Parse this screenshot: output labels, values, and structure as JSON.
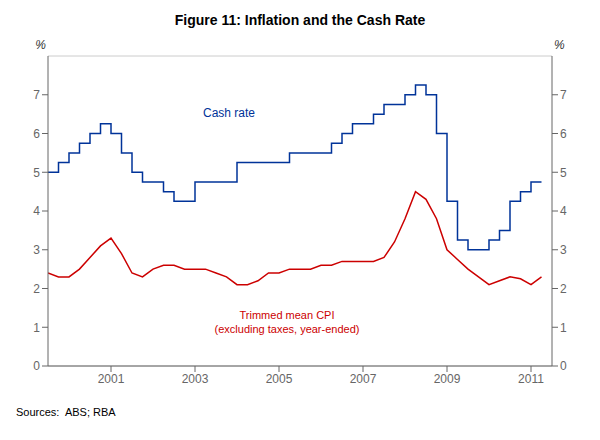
{
  "chart_data": {
    "type": "line",
    "title": "Figure 11: Inflation and the Cash Rate",
    "ylabel": "%",
    "y2label": "%",
    "xlim": [
      1999.5,
      2011.5
    ],
    "xticks": [
      2001,
      2003,
      2005,
      2007,
      2009,
      2011
    ],
    "ylim": [
      0,
      8
    ],
    "yticks": [
      0,
      1,
      2,
      3,
      4,
      5,
      6,
      7
    ],
    "y2lim": [
      0,
      8
    ],
    "y2ticks": [
      0,
      1,
      2,
      3,
      4,
      5,
      6,
      7
    ],
    "grid": true,
    "annotations": [
      "Cash rate",
      "Trimmed mean CPI",
      "(excluding taxes, year-ended)",
      "Sources:  ABS; RBA"
    ],
    "series": [
      {
        "type": "step",
        "color": "#003399",
        "x": [
          1999.5,
          1999.75,
          2000.0,
          2000.25,
          2000.5,
          2000.75,
          2000.916,
          2001.0,
          2001.25,
          2001.5,
          2001.75,
          2002.0,
          2002.25,
          2002.5,
          2002.75,
          2003.0,
          2003.25,
          2003.5,
          2003.75,
          2004.0,
          2004.25,
          2004.5,
          2004.75,
          2005.0,
          2005.25,
          2005.5,
          2005.75,
          2006.0,
          2006.25,
          2006.5,
          2006.75,
          2007.0,
          2007.25,
          2007.5,
          2007.75,
          2008.0,
          2008.25,
          2008.5,
          2008.75,
          2009.0,
          2009.25,
          2009.5,
          2009.75,
          2010.0,
          2010.25,
          2010.5,
          2010.75,
          2011.0,
          2011.25
        ],
        "values": [
          5.0,
          5.25,
          5.5,
          5.75,
          6.0,
          6.25,
          6.25,
          6.0,
          5.5,
          5.0,
          4.75,
          4.75,
          4.5,
          4.25,
          4.25,
          4.75,
          4.75,
          4.75,
          4.75,
          5.25,
          5.25,
          5.25,
          5.25,
          5.25,
          5.5,
          5.5,
          5.5,
          5.5,
          5.75,
          6.0,
          6.25,
          6.25,
          6.5,
          6.75,
          6.75,
          7.0,
          7.25,
          7.0,
          6.0,
          4.25,
          3.25,
          3.0,
          3.0,
          3.25,
          3.5,
          4.25,
          4.5,
          4.75,
          4.75
        ]
      },
      {
        "type": "line",
        "color": "#cc0000",
        "x": [
          1999.5,
          1999.75,
          2000.0,
          2000.25,
          2000.5,
          2000.75,
          2001.0,
          2001.25,
          2001.5,
          2001.75,
          2002.0,
          2002.25,
          2002.5,
          2002.75,
          2003.0,
          2003.25,
          2003.5,
          2003.75,
          2004.0,
          2004.25,
          2004.5,
          2004.75,
          2005.0,
          2005.25,
          2005.5,
          2005.75,
          2006.0,
          2006.25,
          2006.5,
          2006.75,
          2007.0,
          2007.25,
          2007.5,
          2007.75,
          2008.0,
          2008.25,
          2008.5,
          2008.75,
          2009.0,
          2009.25,
          2009.5,
          2009.75,
          2010.0,
          2010.25,
          2010.5,
          2010.75,
          2011.0,
          2011.25
        ],
        "values": [
          2.4,
          2.3,
          2.3,
          2.5,
          2.8,
          3.1,
          3.3,
          2.9,
          2.4,
          2.3,
          2.5,
          2.6,
          2.6,
          2.5,
          2.5,
          2.5,
          2.4,
          2.3,
          2.1,
          2.1,
          2.2,
          2.4,
          2.4,
          2.5,
          2.5,
          2.5,
          2.6,
          2.6,
          2.7,
          2.7,
          2.7,
          2.7,
          2.8,
          3.2,
          3.8,
          4.5,
          4.3,
          3.8,
          3.0,
          2.75,
          2.5,
          2.3,
          2.1,
          2.2,
          2.3,
          2.25,
          2.1,
          2.3
        ]
      }
    ]
  }
}
